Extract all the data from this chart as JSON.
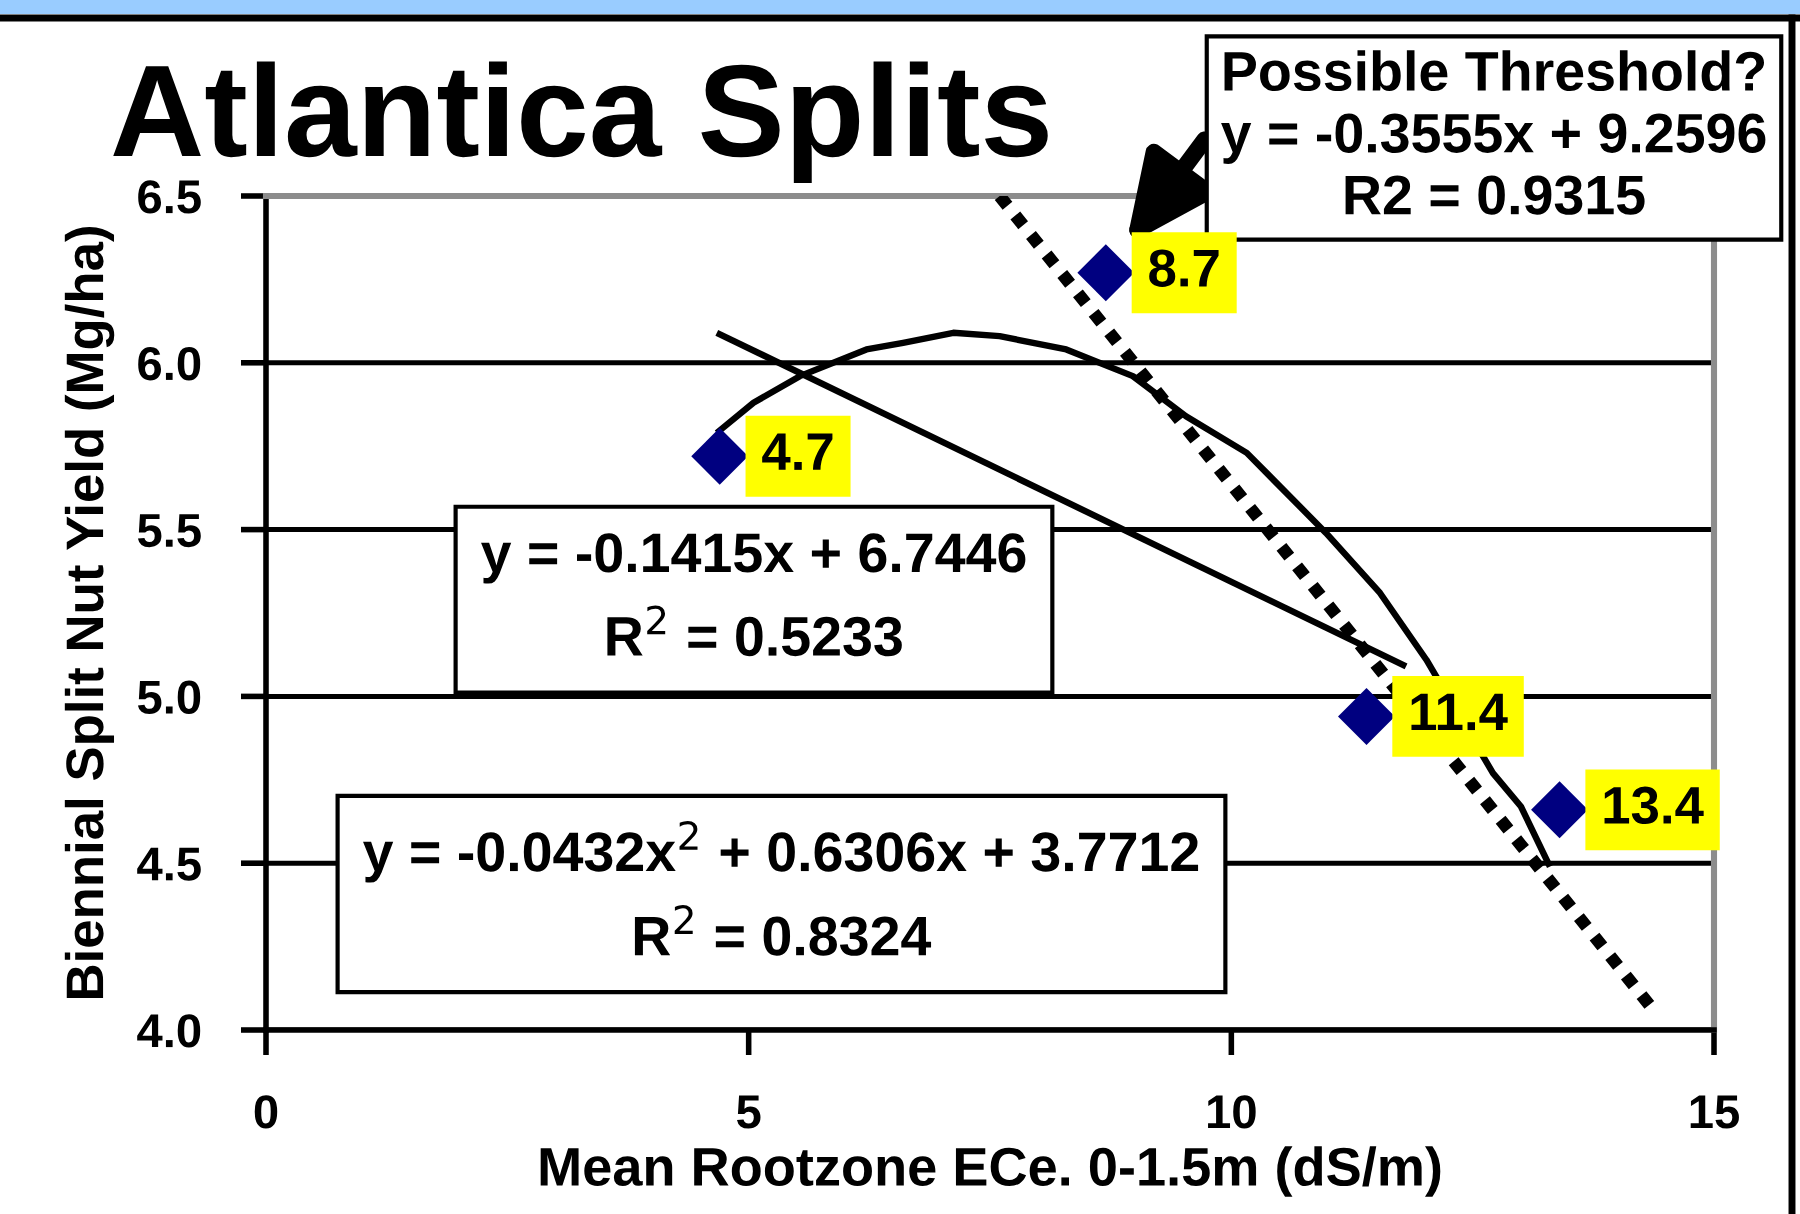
{
  "chart_data": {
    "type": "scatter",
    "title": "Atlantica Splits",
    "xlabel": "Mean Rootzone ECe. 0-1.5m (dS/m)",
    "ylabel": "Biennial Split Nut Yield (Mg/ha)",
    "xlim": [
      0,
      15
    ],
    "xticks": [
      0,
      5,
      10,
      15
    ],
    "ylim": [
      4.0,
      6.5
    ],
    "yticks": [
      {
        "value": 4,
        "label": "4.0"
      },
      4.5,
      {
        "value": 5,
        "label": "5.0"
      },
      5.5,
      {
        "value": 6,
        "label": "6.0"
      },
      6.5
    ],
    "grid": "y",
    "series": [
      {
        "color": "#000080",
        "marker": "diamond",
        "x": [
          4.7,
          8.7,
          11.4,
          13.4
        ],
        "values": [
          5.72,
          6.27,
          4.94,
          4.66
        ]
      },
      {
        "type": "line",
        "color": "#000000",
        "line_style": "solid",
        "x": [
          4.67,
          11.81
        ],
        "values": [
          6.09,
          5.09
        ]
      },
      {
        "type": "line",
        "color": "#000000",
        "line_style": "solid",
        "x": [
          4.67,
          5.05,
          5.53,
          6.22,
          6.6,
          7.12,
          7.6,
          8.29,
          8.98,
          9.53,
          10.16,
          10.98,
          11.54,
          12.02,
          12.71,
          13.0,
          13.3
        ],
        "values": [
          5.79,
          5.88,
          5.96,
          6.04,
          6.06,
          6.09,
          6.08,
          6.04,
          5.96,
          5.84,
          5.73,
          5.49,
          5.31,
          5.11,
          4.77,
          4.67,
          4.49
        ]
      },
      {
        "type": "line",
        "color": "#000000",
        "line_style": "dotted",
        "x": [
          7.6,
          14.4
        ],
        "values": [
          6.5,
          4.05
        ]
      }
    ],
    "annotations": [
      "y = -0.1415x + 6.7446\nR$^{2}$ = 0.5233",
      "y = -0.0432x$^{2}$ + 0.6306x + 3.7712\nR$^{2}$ = 0.8324",
      {
        "text": "Possible Threshold?\ny = -0.3555x + 9.2596\nR2 = 0.9315",
        "x": 8.7,
        "y": 6.27
      },
      {
        "text": "4.7",
        "x": 4.7,
        "y": 5.72
      },
      {
        "text": "8.7",
        "x": 8.7,
        "y": 6.27
      },
      {
        "text": "11.4",
        "x": 11.4,
        "y": 4.94
      },
      {
        "text": "13.4",
        "x": 13.4,
        "y": 4.66
      }
    ]
  }
}
